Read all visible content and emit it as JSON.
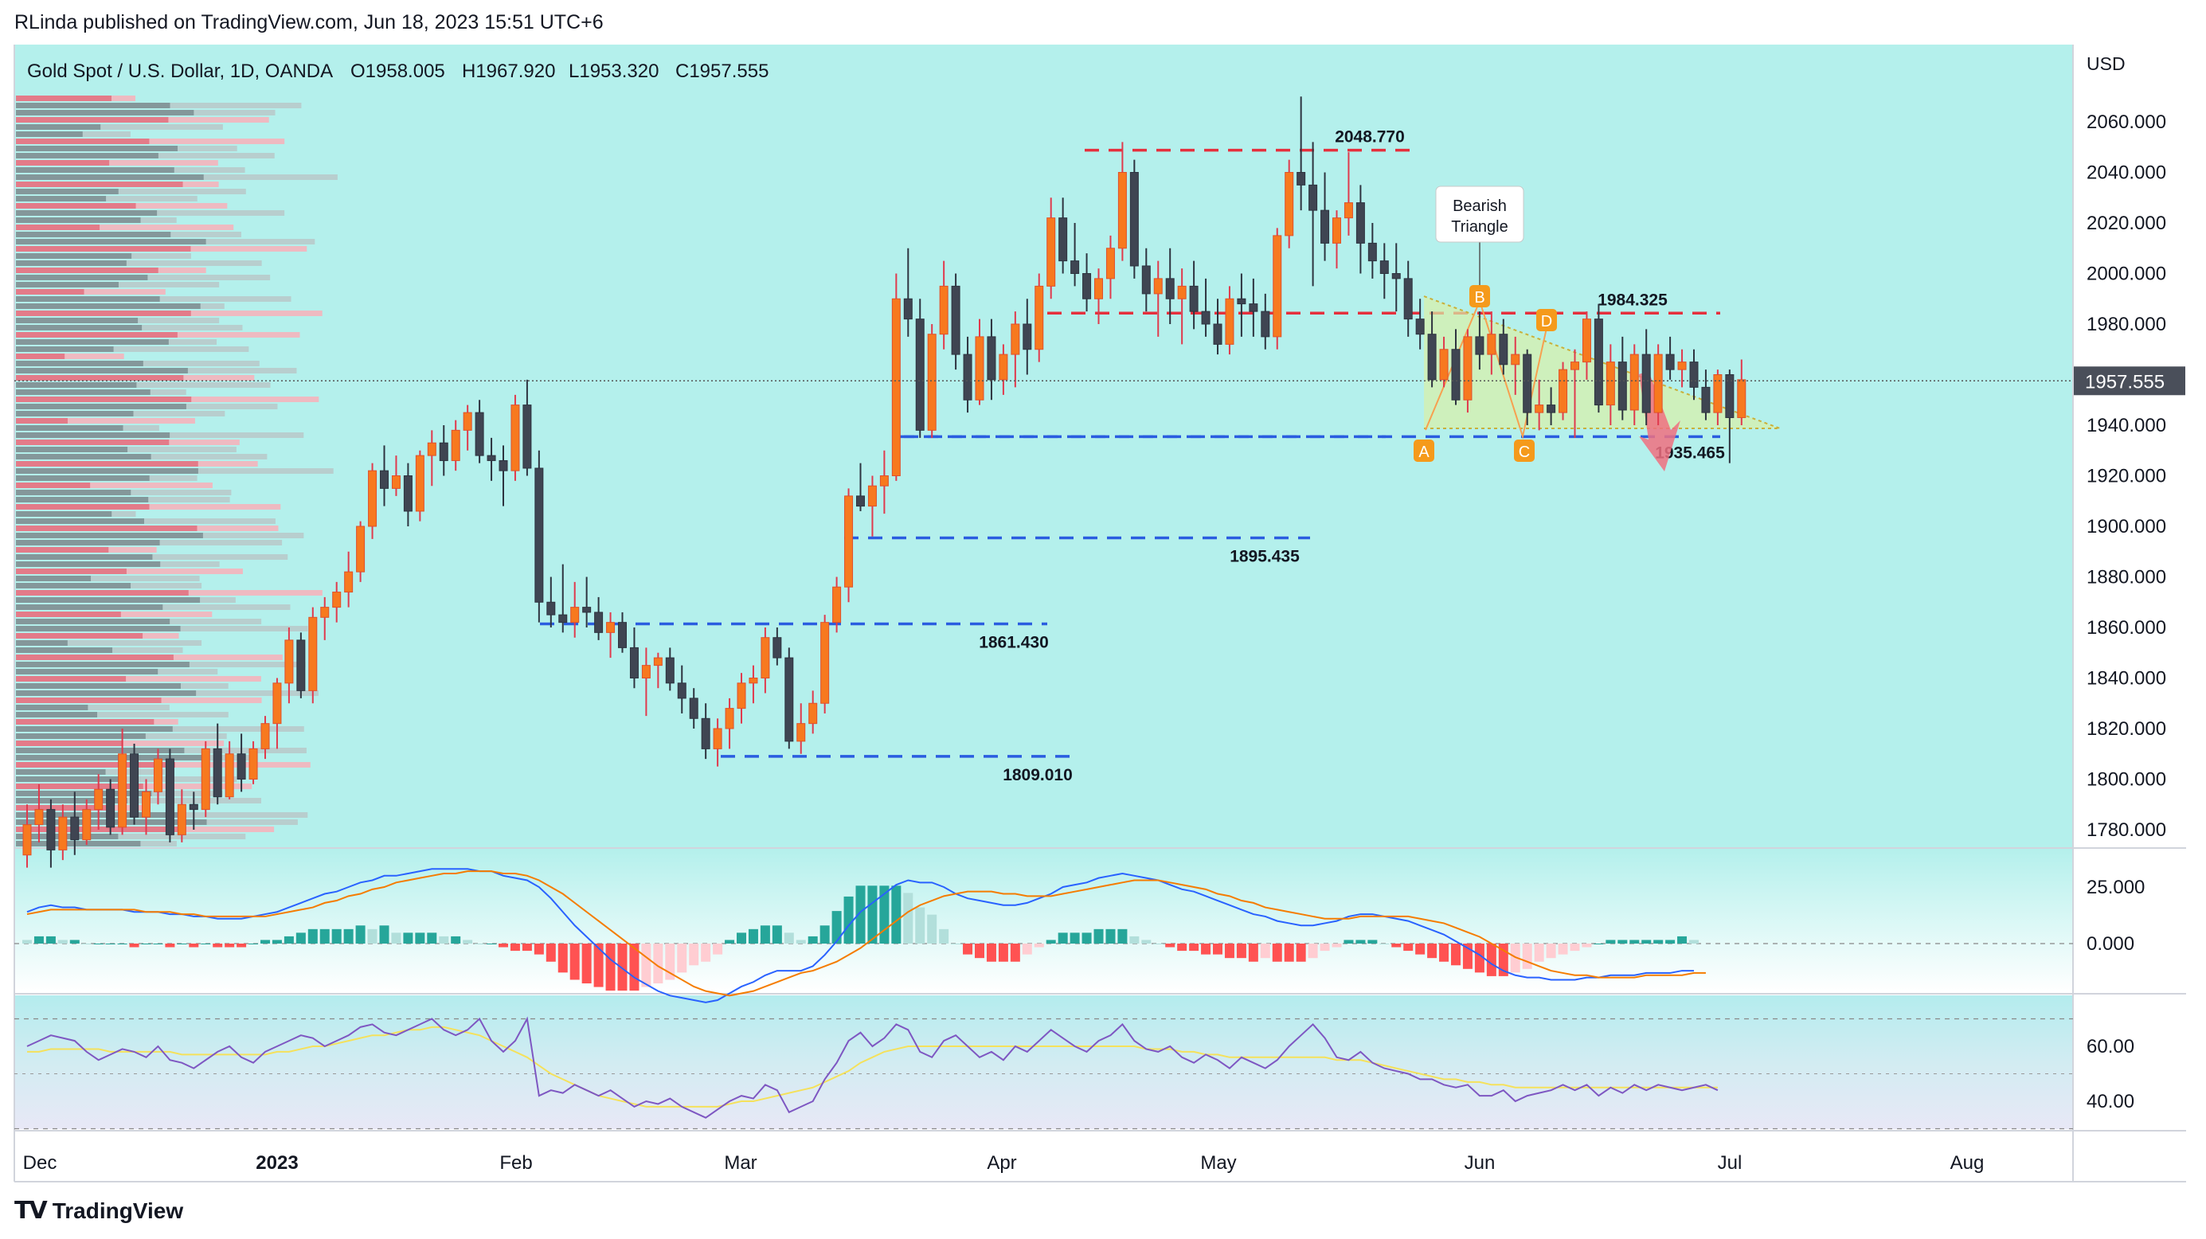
{
  "header": {
    "publisher": "RLinda published on TradingView.com, Jun 18, 2023 15:51 UTC+6"
  },
  "legend": {
    "symbol": "Gold Spot / U.S. Dollar, 1D, OANDA",
    "open": "O1958.005",
    "high": "H1967.920",
    "low": "L1953.320",
    "close": "C1957.555"
  },
  "footer": {
    "brand": "TradingView"
  },
  "colors": {
    "up": "#f7791f",
    "down": "#3f4552",
    "price_bg": "#b4f0ec",
    "red_line": "#e5303d",
    "blue_line": "#2a5de0",
    "macd_line": "#2962ff",
    "signal_line": "#f57c00",
    "rsi_line": "#7e57c2",
    "rsi_ma": "#f5e15b"
  },
  "chart_data": {
    "type": "candlestick",
    "currency": "USD",
    "last_price_label": "1957.555",
    "price_axis": {
      "ticks": [
        "2060.000",
        "2040.000",
        "2020.000",
        "2000.000",
        "1980.000",
        "1960.000",
        "1940.000",
        "1920.000",
        "1900.000",
        "1880.000",
        "1860.000",
        "1840.000",
        "1820.000",
        "1800.000",
        "1780.000"
      ],
      "ylim": [
        1774,
        2076
      ]
    },
    "time_axis": {
      "ticks": [
        "Dec",
        "2023",
        "Feb",
        "Mar",
        "Apr",
        "May",
        "Jun",
        "Jul",
        "Aug"
      ]
    },
    "levels": [
      {
        "label": "2048.770",
        "price": 2048.77,
        "color": "red"
      },
      {
        "label": "1984.325",
        "price": 1984.325,
        "color": "red"
      },
      {
        "label": "1935.465",
        "price": 1935.465,
        "color": "blue"
      },
      {
        "label": "1895.435",
        "price": 1895.435,
        "color": "blue"
      },
      {
        "label": "1861.430",
        "price": 1861.43,
        "color": "blue"
      },
      {
        "label": "1809.010",
        "price": 1809.01,
        "color": "blue"
      }
    ],
    "pattern": {
      "title_line1": "Bearish",
      "title_line2": "Triangle",
      "points": [
        "A",
        "B",
        "C",
        "D"
      ]
    },
    "macd_axis": {
      "ticks": [
        "25.000",
        "0.000"
      ]
    },
    "rsi_axis": {
      "ticks": [
        "60.00",
        "40.00"
      ]
    },
    "candles": [
      [
        1770,
        1790,
        1765,
        1782
      ],
      [
        1782,
        1798,
        1775,
        1788
      ],
      [
        1788,
        1792,
        1765,
        1772
      ],
      [
        1772,
        1790,
        1768,
        1785
      ],
      [
        1785,
        1795,
        1770,
        1776
      ],
      [
        1776,
        1792,
        1774,
        1788
      ],
      [
        1788,
        1802,
        1780,
        1796
      ],
      [
        1796,
        1800,
        1778,
        1781
      ],
      [
        1781,
        1820,
        1778,
        1810
      ],
      [
        1810,
        1814,
        1782,
        1785
      ],
      [
        1785,
        1800,
        1778,
        1795
      ],
      [
        1795,
        1812,
        1790,
        1808
      ],
      [
        1808,
        1812,
        1775,
        1778
      ],
      [
        1778,
        1796,
        1775,
        1790
      ],
      [
        1790,
        1795,
        1780,
        1788
      ],
      [
        1788,
        1815,
        1785,
        1812
      ],
      [
        1812,
        1822,
        1790,
        1793
      ],
      [
        1793,
        1815,
        1792,
        1810
      ],
      [
        1810,
        1818,
        1795,
        1800
      ],
      [
        1800,
        1815,
        1798,
        1812
      ],
      [
        1812,
        1825,
        1808,
        1822
      ],
      [
        1822,
        1840,
        1812,
        1838
      ],
      [
        1838,
        1860,
        1830,
        1855
      ],
      [
        1855,
        1858,
        1832,
        1835
      ],
      [
        1835,
        1868,
        1830,
        1864
      ],
      [
        1864,
        1872,
        1855,
        1868
      ],
      [
        1868,
        1878,
        1862,
        1874
      ],
      [
        1874,
        1890,
        1868,
        1882
      ],
      [
        1882,
        1902,
        1878,
        1900
      ],
      [
        1900,
        1925,
        1895,
        1922
      ],
      [
        1922,
        1932,
        1908,
        1915
      ],
      [
        1915,
        1928,
        1912,
        1920
      ],
      [
        1920,
        1925,
        1900,
        1906
      ],
      [
        1906,
        1930,
        1902,
        1928
      ],
      [
        1928,
        1938,
        1916,
        1933
      ],
      [
        1933,
        1940,
        1920,
        1926
      ],
      [
        1926,
        1942,
        1922,
        1938
      ],
      [
        1938,
        1948,
        1930,
        1945
      ],
      [
        1945,
        1950,
        1925,
        1928
      ],
      [
        1928,
        1935,
        1918,
        1926
      ],
      [
        1926,
        1932,
        1908,
        1922
      ],
      [
        1922,
        1952,
        1918,
        1948
      ],
      [
        1948,
        1958,
        1920,
        1923
      ],
      [
        1923,
        1930,
        1862,
        1870
      ],
      [
        1870,
        1880,
        1860,
        1865
      ],
      [
        1865,
        1885,
        1858,
        1862
      ],
      [
        1862,
        1878,
        1856,
        1868
      ],
      [
        1868,
        1880,
        1860,
        1866
      ],
      [
        1866,
        1872,
        1855,
        1858
      ],
      [
        1858,
        1866,
        1848,
        1862
      ],
      [
        1862,
        1866,
        1850,
        1852
      ],
      [
        1852,
        1860,
        1836,
        1840
      ],
      [
        1840,
        1852,
        1825,
        1845
      ],
      [
        1845,
        1850,
        1836,
        1848
      ],
      [
        1848,
        1852,
        1835,
        1838
      ],
      [
        1838,
        1845,
        1826,
        1832
      ],
      [
        1832,
        1836,
        1820,
        1824
      ],
      [
        1824,
        1830,
        1808,
        1812
      ],
      [
        1812,
        1824,
        1805,
        1820
      ],
      [
        1820,
        1832,
        1812,
        1828
      ],
      [
        1828,
        1842,
        1822,
        1838
      ],
      [
        1838,
        1845,
        1830,
        1840
      ],
      [
        1840,
        1860,
        1834,
        1856
      ],
      [
        1856,
        1860,
        1845,
        1848
      ],
      [
        1848,
        1852,
        1812,
        1815
      ],
      [
        1815,
        1830,
        1810,
        1822
      ],
      [
        1822,
        1835,
        1818,
        1830
      ],
      [
        1830,
        1865,
        1826,
        1862
      ],
      [
        1862,
        1880,
        1858,
        1876
      ],
      [
        1876,
        1915,
        1870,
        1912
      ],
      [
        1912,
        1925,
        1906,
        1908
      ],
      [
        1908,
        1920,
        1896,
        1916
      ],
      [
        1916,
        1930,
        1905,
        1920
      ],
      [
        1920,
        2000,
        1918,
        1990
      ],
      [
        1990,
        2010,
        1975,
        1982
      ],
      [
        1982,
        1990,
        1935,
        1938
      ],
      [
        1938,
        1980,
        1935,
        1976
      ],
      [
        1976,
        2005,
        1970,
        1995
      ],
      [
        1995,
        2000,
        1962,
        1968
      ],
      [
        1968,
        1975,
        1945,
        1950
      ],
      [
        1950,
        1982,
        1948,
        1975
      ],
      [
        1975,
        1982,
        1950,
        1958
      ],
      [
        1958,
        1972,
        1952,
        1968
      ],
      [
        1968,
        1985,
        1955,
        1980
      ],
      [
        1980,
        1990,
        1960,
        1970
      ],
      [
        1970,
        2000,
        1965,
        1995
      ],
      [
        1995,
        2030,
        1990,
        2022
      ],
      [
        2022,
        2030,
        2000,
        2005
      ],
      [
        2005,
        2020,
        1995,
        2000
      ],
      [
        2000,
        2008,
        1985,
        1990
      ],
      [
        1990,
        2002,
        1980,
        1998
      ],
      [
        1998,
        2015,
        1990,
        2010
      ],
      [
        2010,
        2052,
        2005,
        2040
      ],
      [
        2040,
        2045,
        1998,
        2003
      ],
      [
        2003,
        2010,
        1985,
        1992
      ],
      [
        1992,
        2005,
        1975,
        1998
      ],
      [
        1998,
        2010,
        1980,
        1990
      ],
      [
        1990,
        2002,
        1972,
        1995
      ],
      [
        1995,
        2005,
        1978,
        1985
      ],
      [
        1985,
        1998,
        1975,
        1980
      ],
      [
        1980,
        1990,
        1968,
        1972
      ],
      [
        1972,
        1995,
        1968,
        1990
      ],
      [
        1990,
        2000,
        1975,
        1988
      ],
      [
        1988,
        1998,
        1975,
        1985
      ],
      [
        1985,
        1992,
        1970,
        1975
      ],
      [
        1975,
        2018,
        1970,
        2015
      ],
      [
        2015,
        2045,
        2010,
        2040
      ],
      [
        2040,
        2070,
        2025,
        2035
      ],
      [
        2035,
        2052,
        1995,
        2025
      ],
      [
        2025,
        2040,
        2005,
        2012
      ],
      [
        2012,
        2025,
        2002,
        2022
      ],
      [
        2022,
        2048,
        2015,
        2028
      ],
      [
        2028,
        2035,
        2000,
        2012
      ],
      [
        2012,
        2020,
        1998,
        2005
      ],
      [
        2005,
        2012,
        1990,
        2000
      ],
      [
        2000,
        2012,
        1985,
        1998
      ],
      [
        1998,
        2005,
        1975,
        1982
      ],
      [
        1982,
        1990,
        1970,
        1976
      ],
      [
        1976,
        1985,
        1955,
        1958
      ],
      [
        1958,
        1975,
        1955,
        1970
      ],
      [
        1970,
        1978,
        1948,
        1950
      ],
      [
        1950,
        1978,
        1945,
        1975
      ],
      [
        1975,
        1985,
        1962,
        1968
      ],
      [
        1968,
        1985,
        1960,
        1976
      ],
      [
        1976,
        1982,
        1960,
        1964
      ],
      [
        1964,
        1975,
        1952,
        1968
      ],
      [
        1968,
        1970,
        1940,
        1945
      ],
      [
        1945,
        1958,
        1938,
        1948
      ],
      [
        1948,
        1955,
        1940,
        1945
      ],
      [
        1945,
        1965,
        1942,
        1962
      ],
      [
        1962,
        1970,
        1935,
        1965
      ],
      [
        1965,
        1985,
        1958,
        1982
      ],
      [
        1982,
        1988,
        1945,
        1948
      ],
      [
        1948,
        1972,
        1940,
        1965
      ],
      [
        1965,
        1975,
        1942,
        1946
      ],
      [
        1946,
        1972,
        1940,
        1968
      ],
      [
        1968,
        1978,
        1940,
        1945
      ],
      [
        1945,
        1972,
        1940,
        1968
      ],
      [
        1968,
        1975,
        1958,
        1962
      ],
      [
        1962,
        1970,
        1955,
        1965
      ],
      [
        1965,
        1970,
        1950,
        1955
      ],
      [
        1955,
        1962,
        1942,
        1945
      ],
      [
        1945,
        1962,
        1940,
        1960
      ],
      [
        1960,
        1962,
        1925,
        1943
      ],
      [
        1943,
        1966,
        1940,
        1958
      ]
    ],
    "macd": [
      14,
      16,
      17,
      16,
      16,
      15,
      15,
      15,
      15,
      14,
      14,
      14,
      13,
      13,
      12,
      12,
      11,
      11,
      11,
      12,
      13,
      14,
      16,
      18,
      20,
      22,
      23,
      25,
      27,
      28,
      30,
      30,
      31,
      32,
      33,
      33,
      33,
      33,
      32,
      32,
      30,
      29,
      28,
      25,
      20,
      14,
      8,
      3,
      -2,
      -7,
      -11,
      -15,
      -18,
      -21,
      -23,
      -24,
      -25,
      -26,
      -25,
      -22,
      -19,
      -17,
      -14,
      -12,
      -12,
      -12,
      -10,
      -5,
      1,
      8,
      14,
      18,
      22,
      26,
      28,
      27,
      27,
      25,
      22,
      20,
      19,
      18,
      17,
      17,
      18,
      20,
      22,
      25,
      26,
      27,
      29,
      30,
      31,
      30,
      29,
      28,
      26,
      24,
      23,
      21,
      19,
      17,
      15,
      13,
      12,
      10,
      9,
      8,
      8,
      9,
      10,
      12,
      13,
      13,
      12,
      11,
      10,
      8,
      6,
      4,
      1,
      -2,
      -5,
      -9,
      -12,
      -14,
      -15,
      -15,
      -16,
      -16,
      -16,
      -15,
      -15,
      -14,
      -14,
      -14,
      -13,
      -13,
      -13,
      -12,
      -12
    ],
    "signal": [
      13,
      14,
      15,
      15,
      15,
      15,
      15,
      15,
      15,
      15,
      14,
      14,
      14,
      13,
      13,
      12,
      12,
      12,
      12,
      12,
      12,
      13,
      14,
      15,
      16,
      18,
      19,
      21,
      22,
      24,
      25,
      27,
      28,
      29,
      30,
      31,
      31,
      32,
      32,
      32,
      31,
      31,
      30,
      28,
      25,
      22,
      18,
      14,
      10,
      6,
      2,
      -2,
      -6,
      -10,
      -13,
      -16,
      -19,
      -21,
      -22,
      -23,
      -22,
      -21,
      -19,
      -17,
      -15,
      -13,
      -12,
      -10,
      -8,
      -5,
      -2,
      2,
      6,
      10,
      14,
      17,
      19,
      21,
      22,
      23,
      23,
      23,
      22,
      22,
      21,
      21,
      21,
      22,
      23,
      24,
      25,
      26,
      27,
      28,
      28,
      28,
      27,
      26,
      25,
      24,
      22,
      21,
      19,
      18,
      16,
      15,
      14,
      13,
      12,
      11,
      11,
      11,
      12,
      12,
      12,
      12,
      12,
      11,
      10,
      9,
      7,
      5,
      3,
      0,
      -3,
      -6,
      -8,
      -10,
      -12,
      -13,
      -14,
      -14,
      -15,
      -15,
      -15,
      -15,
      -14,
      -14,
      -14,
      -14,
      -13,
      -13
    ],
    "rsi": [
      60,
      62,
      64,
      63,
      62,
      58,
      55,
      57,
      59,
      58,
      56,
      60,
      55,
      54,
      52,
      55,
      58,
      60,
      56,
      54,
      58,
      60,
      62,
      64,
      63,
      60,
      62,
      64,
      67,
      68,
      65,
      64,
      66,
      68,
      70,
      66,
      64,
      66,
      70,
      62,
      58,
      62,
      70,
      42,
      44,
      43,
      46,
      44,
      42,
      44,
      41,
      38,
      40,
      39,
      41,
      38,
      36,
      34,
      37,
      40,
      42,
      41,
      46,
      44,
      36,
      38,
      40,
      48,
      54,
      62,
      65,
      60,
      63,
      68,
      66,
      58,
      56,
      62,
      64,
      60,
      56,
      58,
      55,
      60,
      58,
      62,
      66,
      63,
      60,
      58,
      62,
      64,
      68,
      62,
      59,
      58,
      60,
      56,
      54,
      57,
      55,
      52,
      56,
      54,
      52,
      55,
      60,
      64,
      68,
      63,
      56,
      55,
      58,
      54,
      52,
      51,
      50,
      48,
      48,
      46,
      45,
      46,
      42,
      42,
      44,
      40,
      42,
      43,
      44,
      46,
      44,
      46,
      42,
      45,
      43,
      46,
      44,
      46,
      45,
      44,
      45,
      46,
      44
    ],
    "rsi_ma": [
      58,
      58,
      59,
      59,
      59,
      59,
      59,
      58,
      58,
      58,
      58,
      58,
      58,
      57,
      57,
      57,
      57,
      57,
      57,
      57,
      57,
      58,
      58,
      59,
      60,
      60,
      61,
      62,
      63,
      64,
      64,
      65,
      66,
      66,
      67,
      67,
      66,
      65,
      64,
      62,
      60,
      58,
      56,
      53,
      50,
      48,
      46,
      44,
      42,
      41,
      40,
      39,
      38,
      38,
      38,
      38,
      38,
      38,
      38,
      39,
      40,
      40,
      41,
      42,
      43,
      44,
      45,
      47,
      49,
      51,
      54,
      56,
      58,
      59,
      60,
      60,
      60,
      60,
      60,
      60,
      60,
      60,
      60,
      60,
      60,
      60,
      60,
      60,
      60,
      60,
      60,
      60,
      60,
      60,
      59,
      59,
      59,
      58,
      58,
      57,
      57,
      56,
      56,
      56,
      56,
      56,
      56,
      56,
      56,
      56,
      55,
      55,
      55,
      54,
      53,
      52,
      51,
      50,
      49,
      48,
      48,
      47,
      47,
      46,
      46,
      45,
      45,
      45,
      45,
      45,
      45,
      45,
      45,
      45,
      45,
      45,
      45,
      45,
      45,
      45,
      45,
      45,
      45
    ]
  }
}
